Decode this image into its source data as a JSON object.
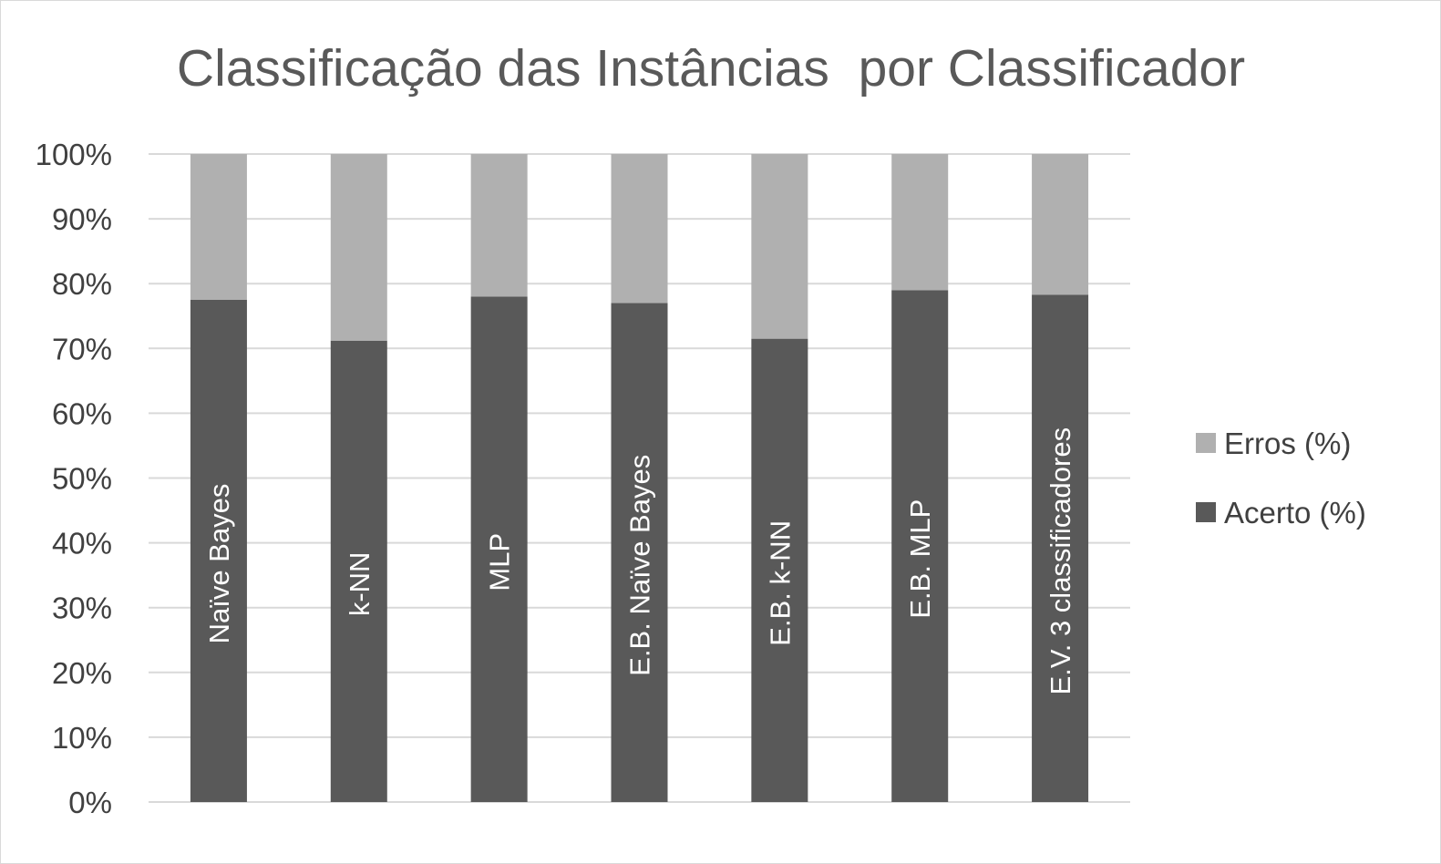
{
  "chart_data": {
    "type": "bar",
    "stacked": true,
    "title": "Classificação das Instâncias  por Classificador",
    "xlabel": "",
    "ylabel": "",
    "ylim": [
      0,
      100
    ],
    "y_ticks": [
      "0%",
      "10%",
      "20%",
      "30%",
      "40%",
      "50%",
      "60%",
      "70%",
      "80%",
      "90%",
      "100%"
    ],
    "grid": true,
    "legend_position": "right",
    "categories": [
      "Naïve Bayes",
      "k-NN",
      "MLP",
      "E.B. Naïve Bayes",
      "E.B. k-NN",
      "E.B. MLP",
      "E.V. 3 classificadores"
    ],
    "category_labels_location": "inside bars, rotated vertical",
    "series": [
      {
        "name": "Acerto (%)",
        "color": "#595959",
        "values": [
          77.5,
          71.2,
          78.0,
          77.0,
          71.5,
          79.0,
          78.3
        ]
      },
      {
        "name": "Erros (%)",
        "color": "#b0b0b0",
        "values": [
          22.5,
          28.8,
          22.0,
          23.0,
          28.5,
          21.0,
          21.7
        ]
      }
    ],
    "legend_order": [
      "Erros (%)",
      "Acerto (%)"
    ],
    "colors": {
      "gridline": "#d9d9d9",
      "title": "#595959",
      "tick_text": "#404040",
      "bar_label": "#ffffff"
    }
  }
}
